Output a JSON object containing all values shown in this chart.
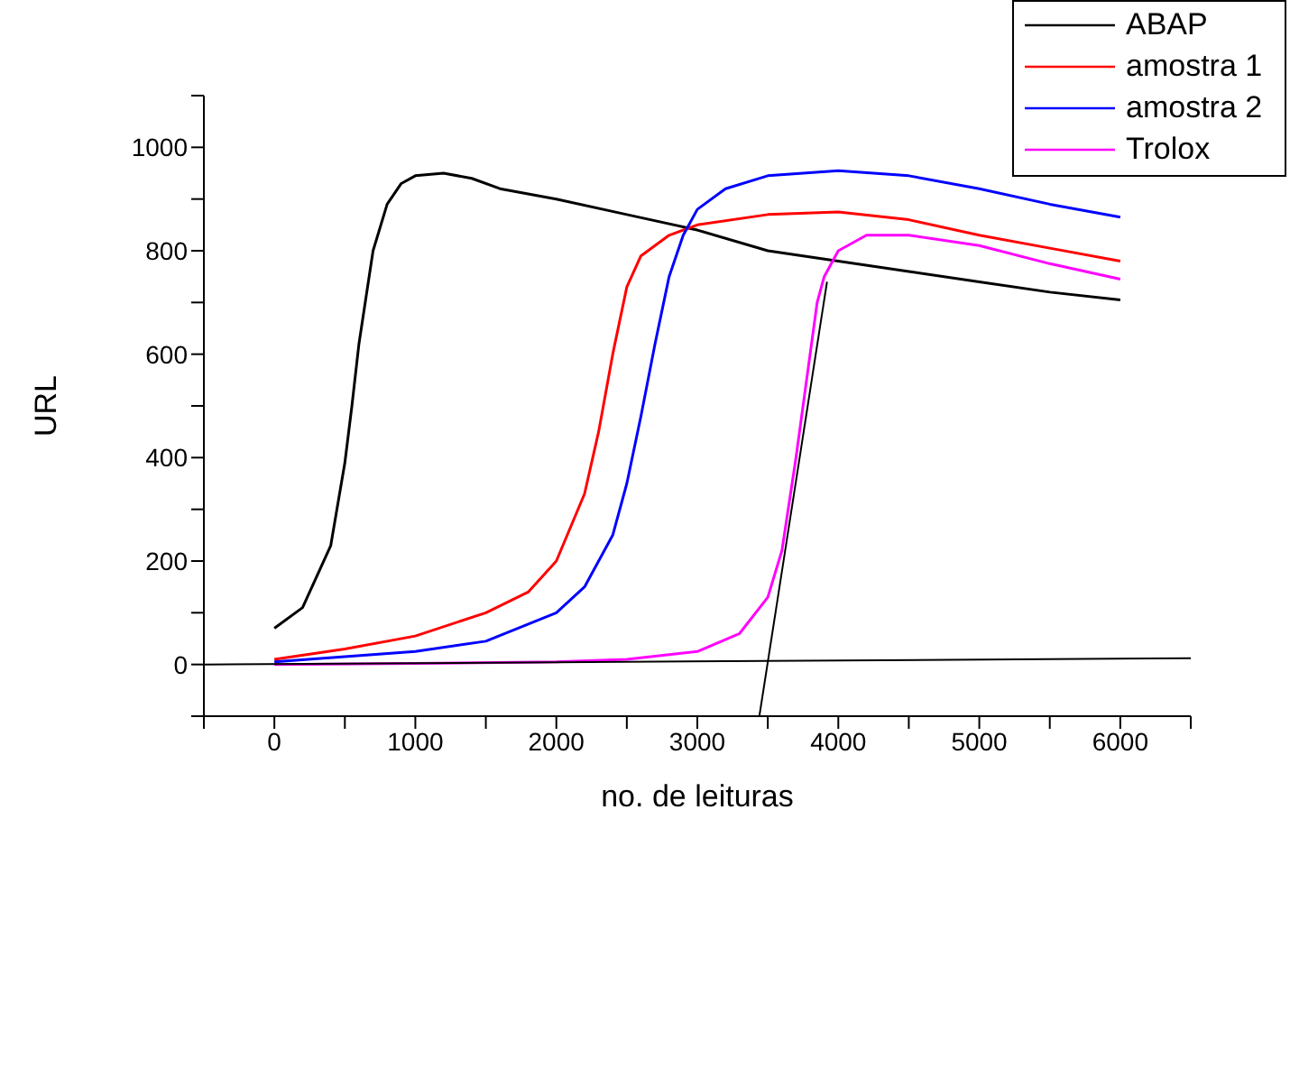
{
  "chart_data": {
    "type": "line",
    "xlabel": "no. de leituras",
    "ylabel": "URL",
    "xlim": [
      -500,
      6500
    ],
    "ylim": [
      -100,
      1100
    ],
    "xticks": [
      {
        "value": -500,
        "label": null
      },
      0,
      {
        "value": 500,
        "label": null
      },
      1000,
      {
        "value": 1500,
        "label": null
      },
      2000,
      {
        "value": 2500,
        "label": null
      },
      3000,
      {
        "value": 3500,
        "label": null
      },
      4000,
      {
        "value": 4500,
        "label": null
      },
      5000,
      {
        "value": 5500,
        "label": null
      },
      6000,
      {
        "value": 6500,
        "label": null
      }
    ],
    "yticks": [
      {
        "value": -100,
        "label": null
      },
      0,
      {
        "value": 100,
        "label": null
      },
      200,
      {
        "value": 300,
        "label": null
      },
      400,
      {
        "value": 500,
        "label": null
      },
      600,
      {
        "value": 700,
        "label": null
      },
      800,
      {
        "value": 900,
        "label": null
      },
      1000,
      {
        "value": 1100,
        "label": null
      }
    ],
    "legend": "top right",
    "marker": "none",
    "line_style": "solid",
    "series": [
      {
        "name": "ABAP",
        "color": "#000000",
        "x": [
          0,
          200,
          400,
          500,
          550,
          600,
          700,
          800,
          900,
          1000,
          1200,
          1400,
          1600,
          2000,
          2500,
          3000,
          3500,
          4000,
          4500,
          5000,
          5500,
          6000
        ],
        "values": [
          70,
          110,
          230,
          390,
          500,
          620,
          800,
          890,
          930,
          945,
          950,
          940,
          920,
          900,
          870,
          840,
          800,
          780,
          760,
          740,
          720,
          705
        ]
      },
      {
        "name": "amostra 1",
        "color": "#ff0000",
        "x": [
          0,
          500,
          1000,
          1500,
          1800,
          2000,
          2200,
          2300,
          2400,
          2500,
          2600,
          2800,
          3000,
          3500,
          4000,
          4500,
          5000,
          5500,
          6000
        ],
        "values": [
          10,
          30,
          55,
          100,
          140,
          200,
          330,
          450,
          600,
          730,
          790,
          830,
          850,
          870,
          875,
          860,
          830,
          805,
          780
        ]
      },
      {
        "name": "amostra 2",
        "color": "#0000ff",
        "x": [
          0,
          500,
          1000,
          1500,
          2000,
          2200,
          2400,
          2500,
          2600,
          2700,
          2800,
          2900,
          3000,
          3200,
          3500,
          4000,
          4500,
          5000,
          5500,
          6000
        ],
        "values": [
          5,
          15,
          25,
          45,
          100,
          150,
          250,
          350,
          480,
          620,
          750,
          830,
          880,
          920,
          945,
          955,
          945,
          920,
          890,
          865
        ]
      },
      {
        "name": "Trolox",
        "color": "#ff00ff",
        "x": [
          0,
          1000,
          2000,
          2500,
          3000,
          3300,
          3500,
          3600,
          3700,
          3800,
          3850,
          3900,
          4000,
          4200,
          4500,
          5000,
          5500,
          6000
        ],
        "values": [
          0,
          2,
          5,
          10,
          25,
          60,
          130,
          220,
          400,
          600,
          700,
          750,
          800,
          830,
          830,
          810,
          775,
          745
        ]
      },
      {
        "type": "line",
        "color": "#000000",
        "x": [
          -500,
          6500
        ],
        "values": [
          0,
          12
        ]
      },
      {
        "type": "line",
        "color": "#000000",
        "x": [
          3440,
          3920
        ],
        "values": [
          -100,
          740
        ]
      }
    ]
  }
}
